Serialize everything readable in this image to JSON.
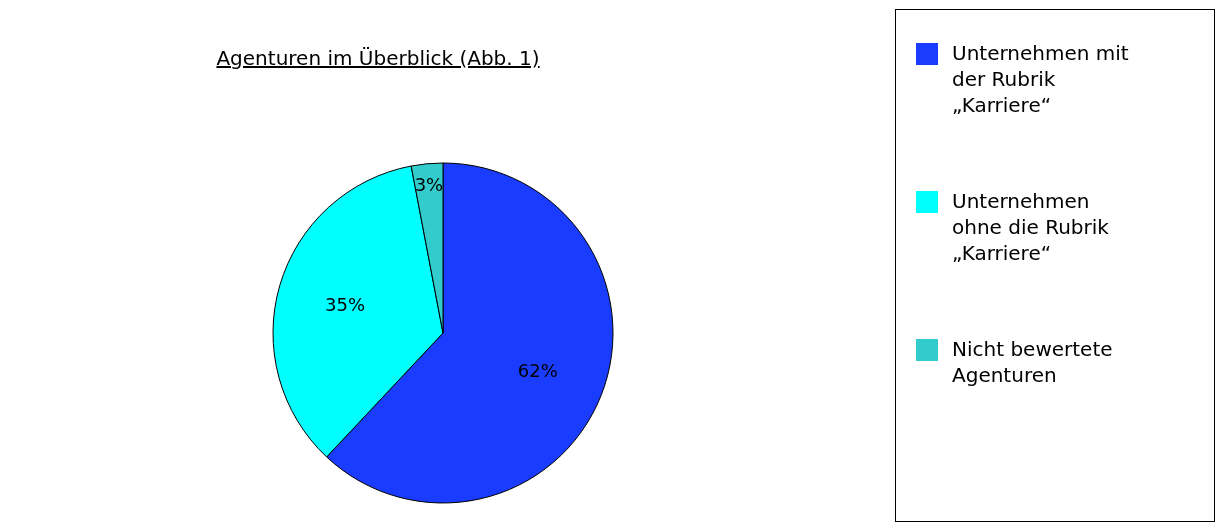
{
  "chart_data": {
    "type": "pie",
    "title": "Agenturen im Überblick (Abb. 1)",
    "categories": [
      "Unternehmen mit der Rubrik „Karriere“",
      "Unternehmen ohne die Rubrik „Karriere“",
      "Nicht bewertete Agenturen"
    ],
    "values": [
      62,
      35,
      3
    ],
    "colors": [
      "#1a3cff",
      "#00ffff",
      "#33cccc"
    ],
    "value_labels": [
      "62%",
      "35%",
      "3%"
    ],
    "legend": "right"
  }
}
